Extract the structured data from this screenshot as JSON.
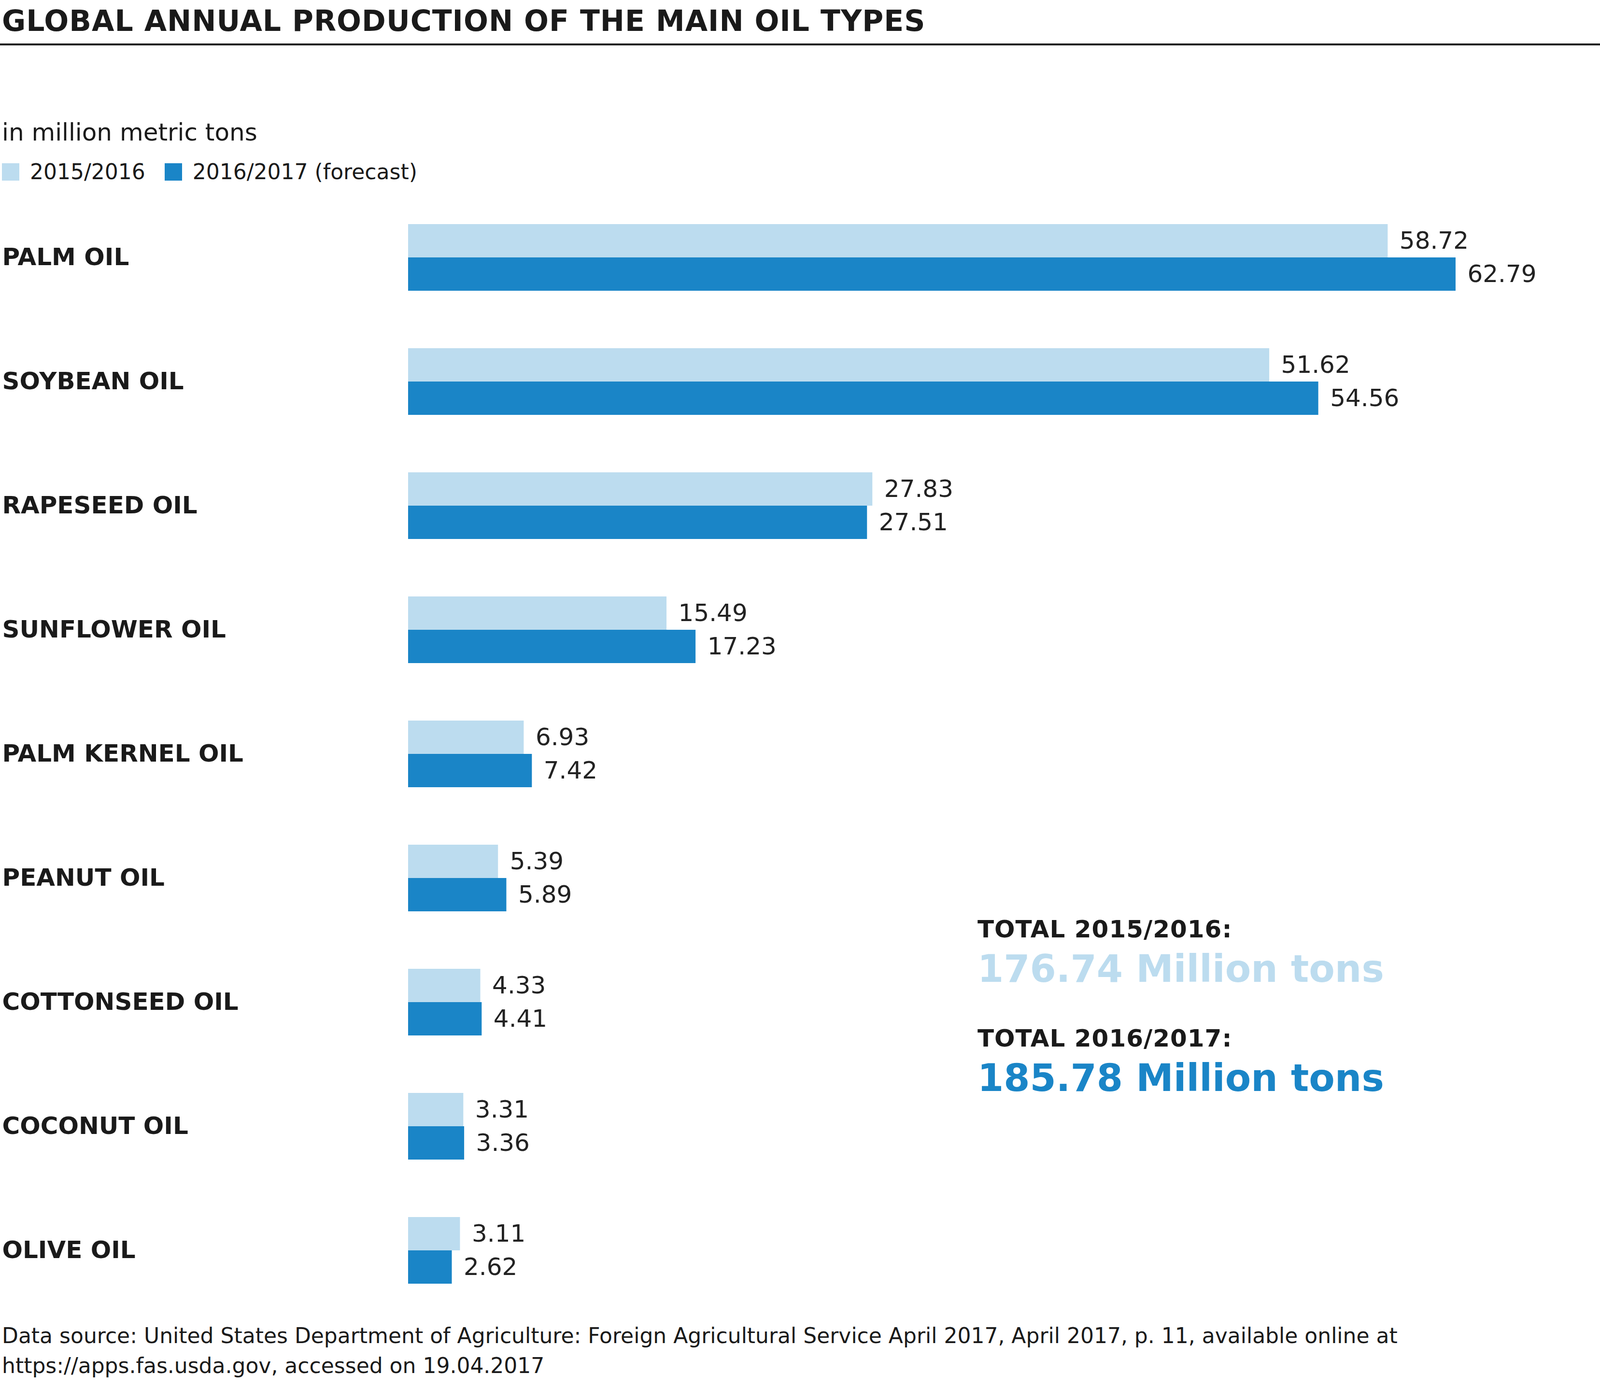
{
  "chart_data": {
    "type": "bar",
    "orientation": "horizontal",
    "title": "GLOBAL ANNUAL PRODUCTION OF THE MAIN OIL TYPES",
    "subtitle": "in million metric tons",
    "categories": [
      "PALM OIL",
      "SOYBEAN OIL",
      "RAPESEED OIL",
      "SUNFLOWER OIL",
      "PALM KERNEL OIL",
      "PEANUT OIL",
      "COTTONSEED OIL",
      "COCONUT OIL",
      "OLIVE OIL"
    ],
    "series": [
      {
        "name": "2015/2016",
        "color": "#bcdcef",
        "values": [
          58.72,
          51.62,
          27.83,
          15.49,
          6.93,
          5.39,
          4.33,
          3.31,
          3.11
        ]
      },
      {
        "name": "2016/2017 (forecast)",
        "color": "#1a85c7",
        "values": [
          62.79,
          54.56,
          27.51,
          17.23,
          7.42,
          5.89,
          4.41,
          3.36,
          2.62
        ]
      }
    ],
    "xlim": [
      0,
      70
    ],
    "data_labels": true,
    "tick_labels": "y",
    "grid": false,
    "legend": "top-left",
    "annotations": [
      {
        "label": "TOTAL 2015/2016:",
        "text": "176.74 Million tons"
      },
      {
        "label": "TOTAL 2016/2017:",
        "text": "185.78 Million tons"
      }
    ],
    "source": "Data source: United States Department of Agriculture: Foreign Agricultural Service April 2017, April 2017, p. 11, available online at https://apps.fas.usda.gov, accessed on 19.04.2017"
  }
}
